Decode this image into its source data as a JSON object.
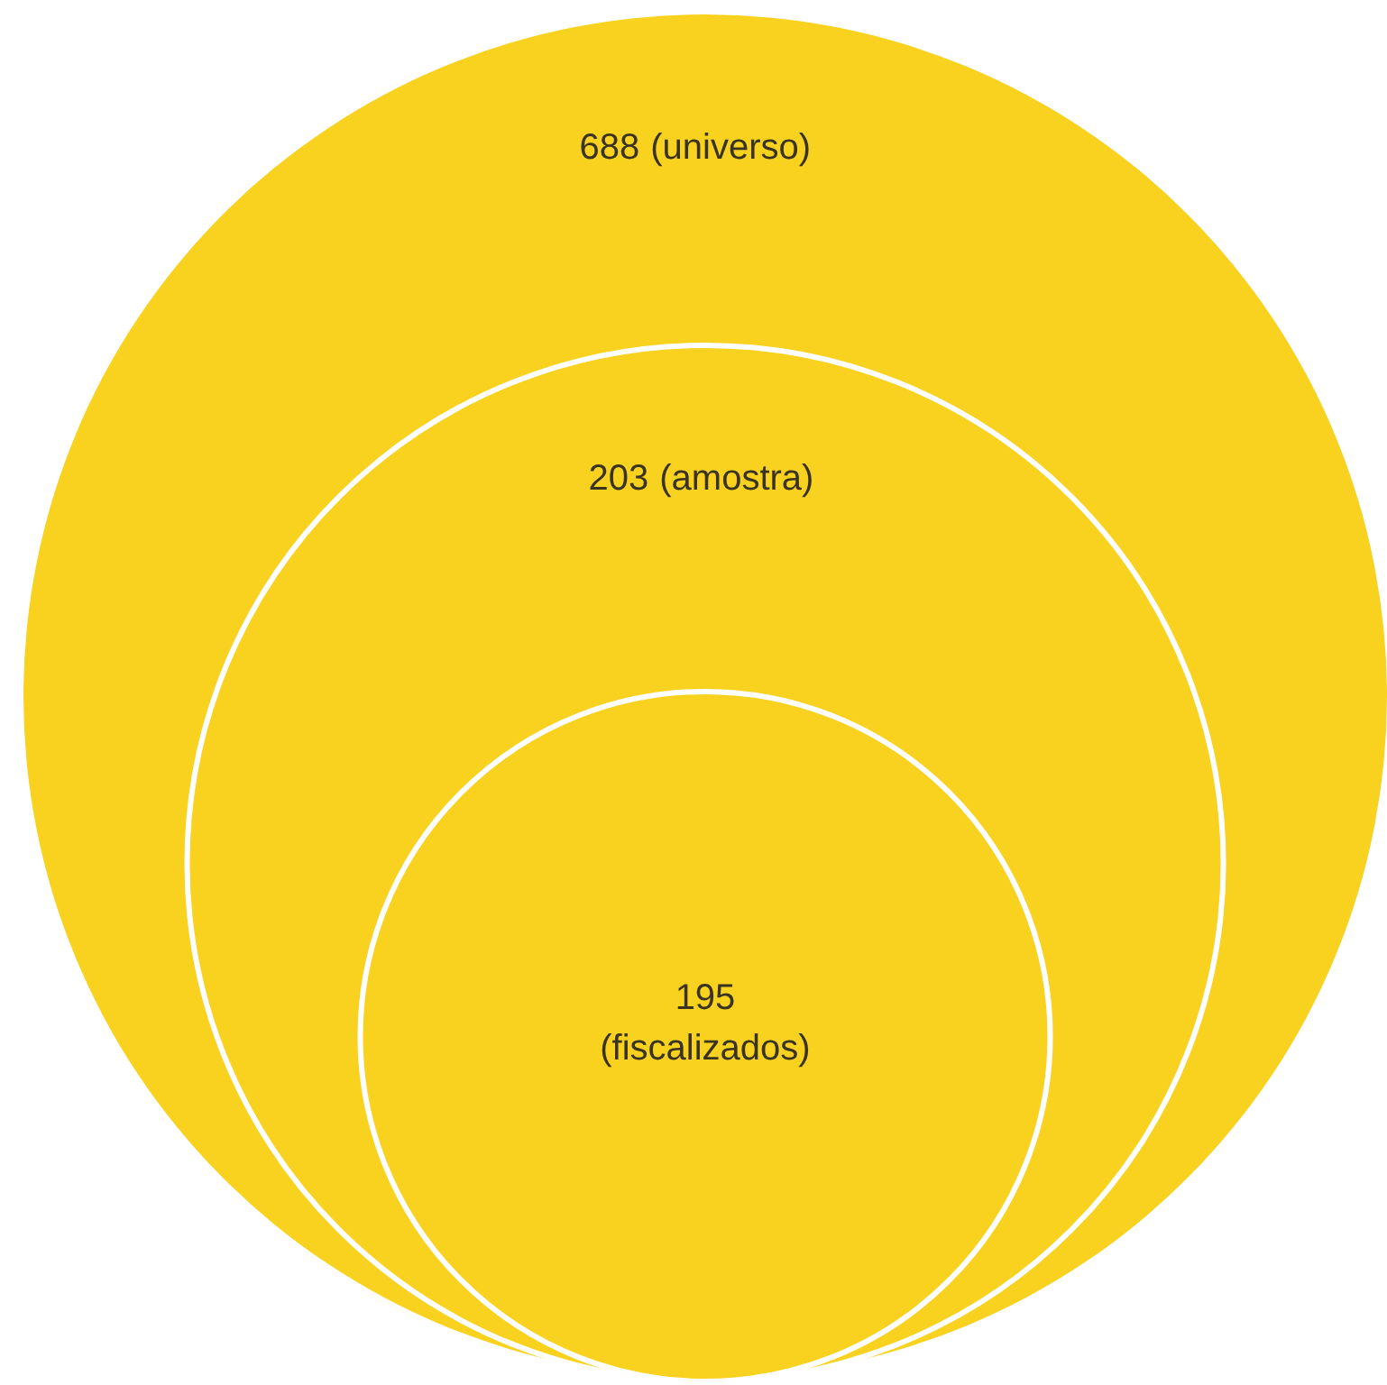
{
  "chart_data": {
    "type": "other",
    "categories": [
      "(universo)",
      "(amostra)",
      "(fiscalizados)"
    ],
    "values": [
      688,
      203,
      195
    ],
    "data_labels": true,
    "colors": [
      "#f8d21f",
      "#f8d21f",
      "#f8d21f"
    ]
  }
}
